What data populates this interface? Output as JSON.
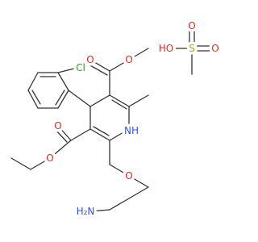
{
  "atoms": {
    "ester_top_carbonyl_o": "O",
    "ester_top_o": "O",
    "ester_bottom_carbonyl_o": "O",
    "ester_bottom_o": "O",
    "chlorine": "Cl",
    "ring_nh": "NH",
    "ether_o": "O",
    "amine": "H₂N",
    "acid_oh": "HO",
    "sulfur": "S",
    "sulfonyl_o_top": "O",
    "sulfonyl_o_right": "O"
  }
}
